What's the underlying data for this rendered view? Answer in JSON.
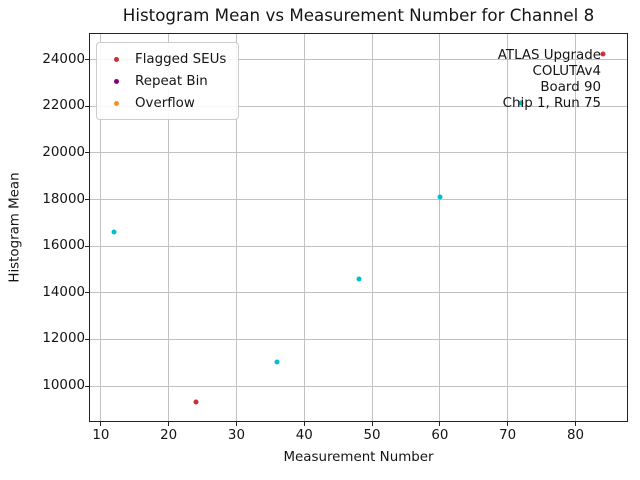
{
  "chart_data": {
    "type": "scatter",
    "title": "Histogram Mean vs Measurement Number for Channel 8",
    "xlabel": "Measurement Number",
    "ylabel": "Histogram Mean",
    "xlim": [
      8.4,
      87.6
    ],
    "ylim": [
      8500,
      25100
    ],
    "xticks": [
      10,
      20,
      30,
      40,
      50,
      60,
      70,
      80
    ],
    "yticks": [
      10000,
      12000,
      14000,
      16000,
      18000,
      20000,
      22000,
      24000
    ],
    "grid": true,
    "legend_position": "upper left",
    "series": [
      {
        "name": "",
        "color": "#00c0cb",
        "marker_size": 5,
        "points": [
          [
            12,
            16600
          ],
          [
            36,
            11050
          ],
          [
            48,
            14600
          ],
          [
            60,
            18100
          ],
          [
            72,
            22150
          ]
        ]
      },
      {
        "name": "Flagged SEUs",
        "color": "#cb2f38",
        "marker_size": 5,
        "points": [
          [
            24,
            9300
          ],
          [
            84,
            24250
          ]
        ]
      },
      {
        "name": "Repeat Bin",
        "color": "#800080",
        "marker_size": 5,
        "points": []
      },
      {
        "name": "Overflow",
        "color": "#f59123",
        "marker_size": 5,
        "points": []
      }
    ],
    "legend_items": [
      {
        "label": "Flagged SEUs",
        "color": "#cb2f38"
      },
      {
        "label": "Repeat Bin",
        "color": "#800080"
      },
      {
        "label": "Overflow",
        "color": "#f59123"
      }
    ],
    "annotation": {
      "align": "right",
      "lines": [
        "ATLAS Upgrade",
        "COLUTAv4",
        "Board 90",
        "Chip 1, Run 75"
      ]
    },
    "colors": {
      "grid": "#c2c2c2",
      "spine": "#222222",
      "text": "#151515",
      "background": "#ffffff"
    }
  }
}
